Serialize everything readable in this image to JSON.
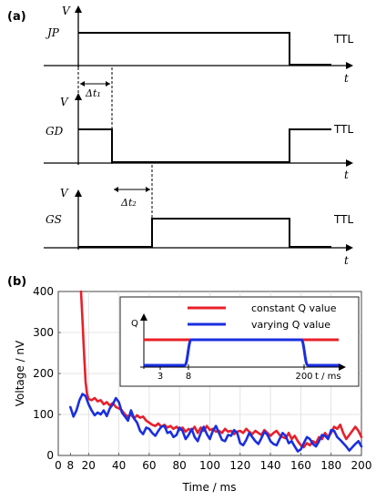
{
  "panel_a": {
    "label": "(a)",
    "v_label": "V",
    "t_label": "t",
    "ttl": "TTL",
    "signals": [
      {
        "name": "JP",
        "high_from": 8,
        "high_to": 200
      },
      {
        "name": "GD",
        "high_from": 8,
        "high_to": 55
      },
      {
        "name": "GS",
        "high_from": 95,
        "high_to": 200
      }
    ],
    "delays": [
      "Δt₁",
      "Δt₂"
    ]
  },
  "panel_b": {
    "label": "(b)"
  },
  "chart_data": {
    "type": "line",
    "xlabel": "Time / ms",
    "ylabel": "Voltage / nV",
    "xlim": [
      0,
      200
    ],
    "ylim": [
      0,
      400
    ],
    "xticks": [
      "0",
      "8",
      "20",
      "40",
      "60",
      "80",
      "100",
      "120",
      "140",
      "160",
      "180",
      "200"
    ],
    "yticks": [
      "0",
      "100",
      "200",
      "300",
      "400"
    ],
    "grid": true,
    "legend_position": "inset-top-right",
    "series": [
      {
        "name": "constant Q value",
        "color": "#e8202a",
        "x": [
          15,
          16,
          17,
          18,
          19,
          20,
          22,
          24,
          26,
          28,
          30,
          32,
          34,
          36,
          38,
          40,
          42,
          44,
          46,
          48,
          50,
          52,
          54,
          56,
          58,
          60,
          62,
          64,
          66,
          68,
          70,
          72,
          74,
          76,
          78,
          80,
          82,
          84,
          86,
          88,
          90,
          92,
          94,
          96,
          98,
          100,
          102,
          104,
          106,
          108,
          110,
          112,
          114,
          116,
          118,
          120,
          122,
          124,
          126,
          128,
          130,
          132,
          134,
          136,
          138,
          140,
          142,
          144,
          146,
          148,
          150,
          152,
          154,
          156,
          158,
          160,
          162,
          164,
          166,
          168,
          170,
          172,
          174,
          176,
          178,
          180,
          182,
          184,
          186,
          188,
          190,
          192,
          194,
          196,
          198,
          200
        ],
        "y": [
          400,
          330,
          250,
          180,
          150,
          138,
          135,
          140,
          132,
          135,
          125,
          130,
          122,
          128,
          118,
          115,
          110,
          100,
          95,
          100,
          90,
          98,
          92,
          95,
          85,
          80,
          75,
          72,
          78,
          70,
          75,
          68,
          72,
          65,
          70,
          62,
          68,
          58,
          65,
          60,
          70,
          55,
          68,
          60,
          72,
          62,
          65,
          58,
          60,
          55,
          65,
          58,
          60,
          52,
          58,
          60,
          55,
          65,
          58,
          52,
          60,
          55,
          50,
          62,
          55,
          48,
          55,
          60,
          50,
          45,
          42,
          55,
          40,
          48,
          35,
          25,
          20,
          30,
          25,
          35,
          30,
          45,
          40,
          55,
          45,
          55,
          70,
          65,
          75,
          55,
          40,
          50,
          60,
          70,
          60,
          45
        ]
      },
      {
        "name": "varying Q value",
        "color": "#1a2fe0",
        "x": [
          8,
          10,
          12,
          14,
          16,
          18,
          20,
          22,
          24,
          26,
          28,
          30,
          32,
          34,
          36,
          38,
          40,
          42,
          44,
          46,
          48,
          50,
          52,
          54,
          56,
          58,
          60,
          62,
          64,
          66,
          68,
          70,
          72,
          74,
          76,
          78,
          80,
          82,
          84,
          86,
          88,
          90,
          92,
          94,
          96,
          98,
          100,
          102,
          104,
          106,
          108,
          110,
          112,
          114,
          116,
          118,
          120,
          122,
          124,
          126,
          128,
          130,
          132,
          134,
          136,
          138,
          140,
          142,
          144,
          146,
          148,
          150,
          152,
          154,
          156,
          158,
          160,
          162,
          164,
          166,
          168,
          170,
          172,
          174,
          176,
          178,
          180,
          182,
          184,
          186,
          188,
          190,
          192,
          194,
          196,
          198,
          200
        ],
        "y": [
          118,
          95,
          110,
          135,
          150,
          145,
          125,
          110,
          98,
          105,
          100,
          110,
          96,
          115,
          125,
          140,
          130,
          105,
          95,
          85,
          110,
          90,
          80,
          60,
          52,
          68,
          65,
          55,
          48,
          60,
          70,
          72,
          55,
          58,
          45,
          50,
          68,
          60,
          40,
          50,
          65,
          45,
          35,
          55,
          70,
          52,
          40,
          60,
          72,
          55,
          38,
          35,
          50,
          48,
          62,
          55,
          30,
          25,
          38,
          55,
          45,
          35,
          28,
          42,
          58,
          50,
          35,
          28,
          25,
          40,
          55,
          48,
          30,
          35,
          22,
          10,
          15,
          30,
          45,
          40,
          28,
          22,
          35,
          50,
          48,
          40,
          62,
          60,
          45,
          38,
          30,
          22,
          12,
          20,
          28,
          35,
          22
        ]
      }
    ],
    "inset": {
      "ylabel": "Q",
      "xlabel": "t / ms",
      "xticks": [
        "3",
        "8",
        "200"
      ],
      "legend": [
        "constant Q value",
        "varying Q value"
      ]
    }
  }
}
